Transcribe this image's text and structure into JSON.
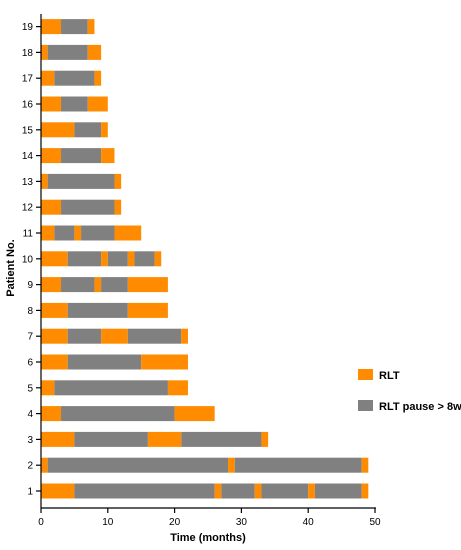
{
  "chart_data": {
    "type": "bar",
    "orientation": "horizontal",
    "stacked": true,
    "xlabel": "Time (months)",
    "ylabel": "Patient No.",
    "xlim": [
      0,
      50
    ],
    "xticks": [
      0,
      10,
      20,
      30,
      40,
      50
    ],
    "grid": false,
    "legend_position": "right",
    "legend": [
      {
        "name": "RLT",
        "color": "#FF8C00"
      },
      {
        "name": "RLT pause > 8w",
        "color": "#808080"
      }
    ],
    "colors": {
      "rlt": "#FF8C00",
      "pause": "#808080"
    },
    "categories": [
      "1",
      "2",
      "3",
      "4",
      "5",
      "6",
      "7",
      "8",
      "9",
      "10",
      "11",
      "12",
      "13",
      "14",
      "15",
      "16",
      "17",
      "18",
      "19"
    ],
    "bars": [
      {
        "patient": "1",
        "segments": [
          [
            0,
            5,
            "rlt"
          ],
          [
            5,
            26,
            "pause"
          ],
          [
            26,
            27,
            "rlt"
          ],
          [
            27,
            32,
            "pause"
          ],
          [
            32,
            33,
            "rlt"
          ],
          [
            33,
            40,
            "pause"
          ],
          [
            40,
            41,
            "rlt"
          ],
          [
            41,
            48,
            "pause"
          ],
          [
            48,
            49,
            "rlt"
          ]
        ]
      },
      {
        "patient": "2",
        "segments": [
          [
            0,
            1,
            "rlt"
          ],
          [
            1,
            28,
            "pause"
          ],
          [
            28,
            29,
            "rlt"
          ],
          [
            29,
            48,
            "pause"
          ],
          [
            48,
            49,
            "rlt"
          ]
        ]
      },
      {
        "patient": "3",
        "segments": [
          [
            0,
            5,
            "rlt"
          ],
          [
            5,
            16,
            "pause"
          ],
          [
            16,
            21,
            "rlt"
          ],
          [
            21,
            33,
            "pause"
          ],
          [
            33,
            34,
            "rlt"
          ]
        ]
      },
      {
        "patient": "4",
        "segments": [
          [
            0,
            3,
            "rlt"
          ],
          [
            3,
            20,
            "pause"
          ],
          [
            20,
            26,
            "rlt"
          ]
        ]
      },
      {
        "patient": "5",
        "segments": [
          [
            0,
            2,
            "rlt"
          ],
          [
            2,
            19,
            "pause"
          ],
          [
            19,
            22,
            "rlt"
          ]
        ]
      },
      {
        "patient": "6",
        "segments": [
          [
            0,
            4,
            "rlt"
          ],
          [
            4,
            15,
            "pause"
          ],
          [
            15,
            22,
            "rlt"
          ]
        ]
      },
      {
        "patient": "7",
        "segments": [
          [
            0,
            4,
            "rlt"
          ],
          [
            4,
            9,
            "pause"
          ],
          [
            9,
            13,
            "rlt"
          ],
          [
            13,
            21,
            "pause"
          ],
          [
            21,
            22,
            "rlt"
          ]
        ]
      },
      {
        "patient": "8",
        "segments": [
          [
            0,
            4,
            "rlt"
          ],
          [
            4,
            13,
            "pause"
          ],
          [
            13,
            19,
            "rlt"
          ]
        ]
      },
      {
        "patient": "9",
        "segments": [
          [
            0,
            3,
            "rlt"
          ],
          [
            3,
            8,
            "pause"
          ],
          [
            8,
            9,
            "rlt"
          ],
          [
            9,
            13,
            "pause"
          ],
          [
            13,
            19,
            "rlt"
          ]
        ]
      },
      {
        "patient": "10",
        "segments": [
          [
            0,
            4,
            "rlt"
          ],
          [
            4,
            9,
            "pause"
          ],
          [
            9,
            10,
            "rlt"
          ],
          [
            10,
            13,
            "pause"
          ],
          [
            13,
            14,
            "rlt"
          ],
          [
            14,
            17,
            "pause"
          ],
          [
            17,
            18,
            "rlt"
          ]
        ]
      },
      {
        "patient": "11",
        "segments": [
          [
            0,
            2,
            "rlt"
          ],
          [
            2,
            5,
            "pause"
          ],
          [
            5,
            6,
            "rlt"
          ],
          [
            6,
            11,
            "pause"
          ],
          [
            11,
            15,
            "rlt"
          ]
        ]
      },
      {
        "patient": "12",
        "segments": [
          [
            0,
            3,
            "rlt"
          ],
          [
            3,
            11,
            "pause"
          ],
          [
            11,
            12,
            "rlt"
          ]
        ]
      },
      {
        "patient": "13",
        "segments": [
          [
            0,
            1,
            "rlt"
          ],
          [
            1,
            11,
            "pause"
          ],
          [
            11,
            12,
            "rlt"
          ]
        ]
      },
      {
        "patient": "14",
        "segments": [
          [
            0,
            3,
            "rlt"
          ],
          [
            3,
            9,
            "pause"
          ],
          [
            9,
            11,
            "rlt"
          ]
        ]
      },
      {
        "patient": "15",
        "segments": [
          [
            0,
            5,
            "rlt"
          ],
          [
            5,
            9,
            "pause"
          ],
          [
            9,
            10,
            "rlt"
          ]
        ]
      },
      {
        "patient": "16",
        "segments": [
          [
            0,
            3,
            "rlt"
          ],
          [
            3,
            7,
            "pause"
          ],
          [
            7,
            10,
            "rlt"
          ]
        ]
      },
      {
        "patient": "17",
        "segments": [
          [
            0,
            2,
            "rlt"
          ],
          [
            2,
            8,
            "pause"
          ],
          [
            8,
            9,
            "rlt"
          ]
        ]
      },
      {
        "patient": "18",
        "segments": [
          [
            0,
            1,
            "rlt"
          ],
          [
            1,
            7,
            "pause"
          ],
          [
            7,
            9,
            "rlt"
          ]
        ]
      },
      {
        "patient": "19",
        "segments": [
          [
            0,
            3,
            "rlt"
          ],
          [
            3,
            7,
            "pause"
          ],
          [
            7,
            8,
            "rlt"
          ]
        ]
      }
    ]
  }
}
